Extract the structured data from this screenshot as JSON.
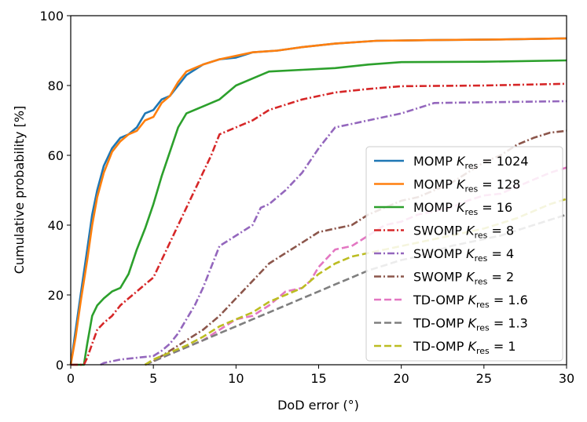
{
  "chart_data": {
    "type": "line",
    "title": "",
    "xlabel": "DoD error (°)",
    "ylabel": "Cumulative probability [%]",
    "xlim": [
      0,
      30
    ],
    "ylim": [
      0,
      100
    ],
    "xticks": [
      "0",
      "5",
      "10",
      "15",
      "20",
      "25",
      "30"
    ],
    "yticks": [
      "0",
      "20",
      "40",
      "60",
      "80",
      "100"
    ],
    "grid": false,
    "legend_position": "lower-right",
    "series": [
      {
        "name_prefix": "MOMP",
        "name_value": "1024",
        "color": "#1f77b4",
        "dash": "solid",
        "x": [
          0,
          0.3,
          0.6,
          1.0,
          1.3,
          1.6,
          2.0,
          2.5,
          3.0,
          3.5,
          4.0,
          4.5,
          5.0,
          5.5,
          6.0,
          6.5,
          7.0,
          8.0,
          9.0,
          10.0,
          11.0,
          12.5,
          14.0,
          16.0,
          18.5,
          22.0,
          26.0,
          30.0
        ],
        "y": [
          0,
          10,
          20,
          33,
          43,
          50,
          57,
          62,
          65,
          66,
          68,
          72,
          73,
          76,
          77,
          80,
          83,
          86,
          87.5,
          88,
          89.5,
          90,
          91,
          92,
          92.8,
          93,
          93.2,
          93.5
        ]
      },
      {
        "name_prefix": "MOMP",
        "name_value": "128",
        "color": "#ff7f0e",
        "dash": "solid",
        "x": [
          0,
          0.3,
          0.6,
          1.0,
          1.3,
          1.6,
          2.0,
          2.5,
          3.0,
          3.5,
          4.0,
          4.5,
          5.0,
          5.5,
          6.0,
          6.5,
          7.0,
          8.0,
          9.0,
          10.0,
          11.0,
          12.5,
          14.0,
          16.0,
          18.5,
          22.0,
          26.0,
          30.0
        ],
        "y": [
          0,
          8,
          18,
          30,
          40,
          48,
          55,
          61,
          64,
          66,
          67,
          70,
          71,
          75,
          77,
          81,
          84,
          86,
          87.5,
          88.5,
          89.5,
          90,
          91,
          92,
          92.8,
          93,
          93.2,
          93.5
        ]
      },
      {
        "name_prefix": "MOMP",
        "name_value": "16",
        "color": "#2ca02c",
        "dash": "solid",
        "x": [
          0,
          0.8,
          1.0,
          1.3,
          1.6,
          2.0,
          2.5,
          3.0,
          3.5,
          4.0,
          4.5,
          5.0,
          5.5,
          6.0,
          6.5,
          7.0,
          8.0,
          9.0,
          10.0,
          11.0,
          12.0,
          14.0,
          16.0,
          18.0,
          20.0,
          25.0,
          30.0
        ],
        "y": [
          0,
          0,
          6,
          14,
          17,
          19,
          21,
          22,
          26,
          33,
          39,
          46,
          54,
          61,
          68,
          72,
          74,
          76,
          80,
          82,
          84,
          84.5,
          85,
          86,
          86.7,
          86.8,
          87.2
        ]
      },
      {
        "name_prefix": "SWOMP",
        "name_value": "8",
        "color": "#d62728",
        "dash": "dashdot",
        "x": [
          0,
          0.8,
          1.0,
          1.3,
          1.6,
          2.0,
          2.5,
          3.0,
          3.5,
          4.0,
          4.5,
          5.0,
          5.5,
          6.0,
          6.5,
          7.0,
          7.5,
          8.0,
          8.5,
          9.0,
          10.0,
          11.0,
          12.0,
          14.0,
          16.0,
          18.0,
          20.0,
          25.0,
          30.0
        ],
        "y": [
          0,
          0,
          2,
          6,
          10,
          12,
          14,
          17,
          19,
          21,
          23,
          25,
          30,
          35,
          40,
          45,
          50,
          55,
          60,
          66,
          68,
          70,
          73,
          76,
          78,
          79,
          79.8,
          80,
          80.5
        ]
      },
      {
        "name_prefix": "SWOMP",
        "name_value": "4",
        "color": "#9467bd",
        "dash": "dashdot",
        "x": [
          1.8,
          2.0,
          3.0,
          4.0,
          5.0,
          5.5,
          6.0,
          6.5,
          7.0,
          7.5,
          8.0,
          8.5,
          9.0,
          10.0,
          11.0,
          11.5,
          12.0,
          13.0,
          14.0,
          15.0,
          16.0,
          17.0,
          18.0,
          20.0,
          22.0,
          25.0,
          30.0
        ],
        "y": [
          0,
          0.5,
          1.5,
          2,
          2.5,
          4,
          6,
          9,
          13,
          17,
          22,
          28,
          34,
          37,
          40,
          45,
          46,
          50,
          55,
          62,
          68,
          69,
          70,
          72,
          75,
          75.2,
          75.5
        ]
      },
      {
        "name_prefix": "SWOMP",
        "name_value": "2",
        "color": "#8c564b",
        "dash": "dashdot",
        "x": [
          4.5,
          5.0,
          6.0,
          7.0,
          8.0,
          9.0,
          10.0,
          11.0,
          12.0,
          13.0,
          14.0,
          15.0,
          16.0,
          17.0,
          18.0,
          19.0,
          20.0,
          21.0,
          22.0,
          23.0,
          24.0,
          25.0,
          26.0,
          27.0,
          28.0,
          29.0,
          30.0
        ],
        "y": [
          0,
          1,
          4,
          7,
          10,
          14,
          19,
          24,
          29,
          32,
          35,
          38,
          39,
          40,
          43,
          45,
          47,
          48,
          50,
          52,
          55,
          58,
          60,
          63,
          65,
          66.5,
          67
        ]
      },
      {
        "name_prefix": "TD-OMP",
        "name_value": "1.6",
        "color": "#e377c2",
        "dash": "dashed",
        "x": [
          4.5,
          5.0,
          6.0,
          7.0,
          8.0,
          9.0,
          10.0,
          11.0,
          12.0,
          13.0,
          14.0,
          14.5,
          15.0,
          16.0,
          17.0,
          18.0,
          19.0,
          20.0,
          21.0,
          22.0,
          23.0,
          24.0,
          25.0,
          26.0,
          27.0,
          28.0,
          29.0,
          30.0
        ],
        "y": [
          0,
          1,
          3,
          5,
          7,
          10,
          13,
          14,
          17,
          21,
          22,
          24,
          28,
          33,
          34,
          37,
          40,
          41,
          43,
          44,
          45,
          47,
          48.5,
          49,
          51,
          53,
          55,
          56.5
        ]
      },
      {
        "name_prefix": "TD-OMP",
        "name_value": "1.3",
        "color": "#7f7f7f",
        "dash": "dashed",
        "x": [
          4.5,
          5.0,
          6.0,
          7.0,
          8.0,
          9.0,
          10.0,
          11.0,
          12.0,
          13.0,
          14.0,
          15.0,
          16.0,
          17.0,
          18.0,
          19.0,
          20.0,
          21.0,
          22.0,
          23.0,
          24.0,
          25.0,
          26.0,
          27.0,
          28.0,
          29.0,
          30.0
        ],
        "y": [
          0,
          1,
          3,
          5,
          7,
          9,
          11,
          13,
          15,
          17,
          19,
          21,
          23,
          25,
          27,
          28.5,
          30,
          31,
          32.5,
          34,
          35,
          36,
          37,
          38.5,
          40,
          41.5,
          43
        ]
      },
      {
        "name_prefix": "TD-OMP",
        "name_value": "1",
        "color": "#bcbd22",
        "dash": "dashed",
        "x": [
          4.5,
          5.0,
          6.0,
          7.0,
          8.0,
          9.0,
          10.0,
          11.0,
          12.0,
          13.0,
          14.0,
          15.0,
          16.0,
          17.0,
          18.0,
          19.0,
          20.0,
          21.0,
          22.0,
          23.0,
          24.0,
          25.0,
          26.0,
          27.0,
          28.0,
          29.0,
          30.0
        ],
        "y": [
          0,
          1.5,
          3.5,
          5.5,
          8,
          11,
          13,
          15,
          18,
          20,
          22,
          26,
          29,
          31,
          32,
          33,
          34,
          35,
          36,
          37,
          38,
          39,
          40.5,
          42,
          44,
          46,
          47.5
        ]
      }
    ],
    "legend_subscript": "res",
    "legend_symbol": "K"
  }
}
